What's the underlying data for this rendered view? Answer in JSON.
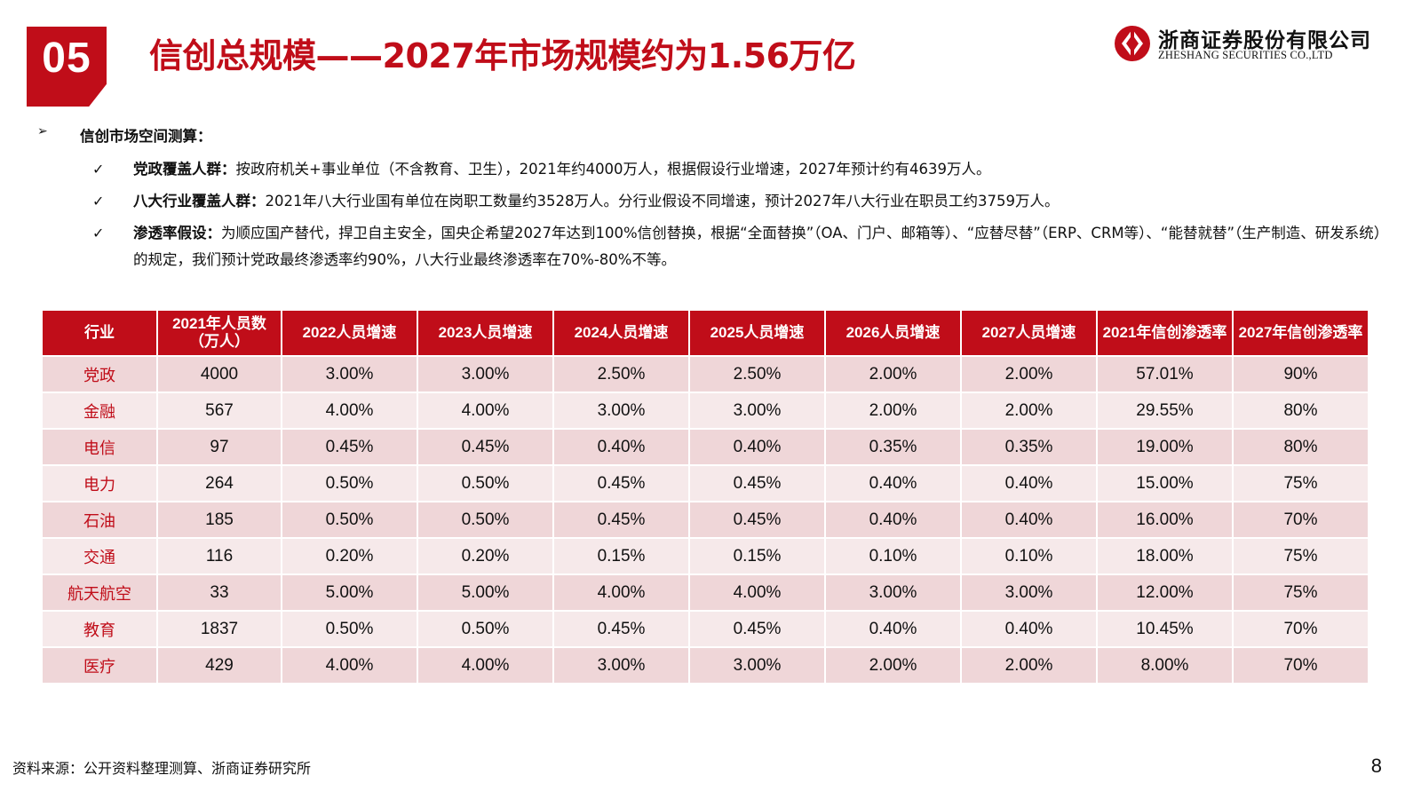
{
  "header": {
    "section_number": "05",
    "title": "信创总规模——2027年市场规模约为1.56万亿",
    "logo_cn": "浙商证券股份有限公司",
    "logo_en": "ZHESHANG SECURITIES CO.,LTD",
    "brand_color": "#c00d19"
  },
  "bullets": {
    "main": "信创市场空间测算：",
    "items": [
      {
        "label": "党政覆盖人群：",
        "text": "按政府机关+事业单位（不含教育、卫生），2021年约4000万人，根据假设行业增速，2027年预计约有4639万人。"
      },
      {
        "label": "八大行业覆盖人群：",
        "text": "2021年八大行业国有单位在岗职工数量约3528万人。分行业假设不同增速，预计2027年八大行业在职员工约3759万人。"
      },
      {
        "label": "渗透率假设：",
        "text": "为顺应国产替代，捍卫自主安全，国央企希望2027年达到100%信创替换，根据“全面替换”（OA、门户、邮箱等）、“应替尽替”（ERP、CRM等）、“能替就替”（生产制造、研发系统）的规定，我们预计党政最终渗透率约90%，八大行业最终渗透率在70%-80%不等。"
      }
    ]
  },
  "table": {
    "headers": [
      "行业",
      "2021年人员数\n（万人）",
      "2022人员增速",
      "2023人员增速",
      "2024人员增速",
      "2025人员增速",
      "2026人员增速",
      "2027人员增速",
      "2021年信创渗透率",
      "2027年信创渗透率"
    ],
    "rows": [
      [
        "党政",
        "4000",
        "3.00%",
        "3.00%",
        "2.50%",
        "2.50%",
        "2.00%",
        "2.00%",
        "57.01%",
        "90%"
      ],
      [
        "金融",
        "567",
        "4.00%",
        "4.00%",
        "3.00%",
        "3.00%",
        "2.00%",
        "2.00%",
        "29.55%",
        "80%"
      ],
      [
        "电信",
        "97",
        "0.45%",
        "0.45%",
        "0.40%",
        "0.40%",
        "0.35%",
        "0.35%",
        "19.00%",
        "80%"
      ],
      [
        "电力",
        "264",
        "0.50%",
        "0.50%",
        "0.45%",
        "0.45%",
        "0.40%",
        "0.40%",
        "15.00%",
        "75%"
      ],
      [
        "石油",
        "185",
        "0.50%",
        "0.50%",
        "0.45%",
        "0.45%",
        "0.40%",
        "0.40%",
        "16.00%",
        "70%"
      ],
      [
        "交通",
        "116",
        "0.20%",
        "0.20%",
        "0.15%",
        "0.15%",
        "0.10%",
        "0.10%",
        "18.00%",
        "75%"
      ],
      [
        "航天航空",
        "33",
        "5.00%",
        "5.00%",
        "4.00%",
        "4.00%",
        "3.00%",
        "3.00%",
        "12.00%",
        "75%"
      ],
      [
        "教育",
        "1837",
        "0.50%",
        "0.50%",
        "0.45%",
        "0.45%",
        "0.40%",
        "0.40%",
        "10.45%",
        "70%"
      ],
      [
        "医疗",
        "429",
        "4.00%",
        "4.00%",
        "3.00%",
        "3.00%",
        "2.00%",
        "2.00%",
        "8.00%",
        "70%"
      ]
    ]
  },
  "footer": {
    "source": "资料来源：公开资料整理测算、浙商证券研究所",
    "page_number": "8"
  }
}
